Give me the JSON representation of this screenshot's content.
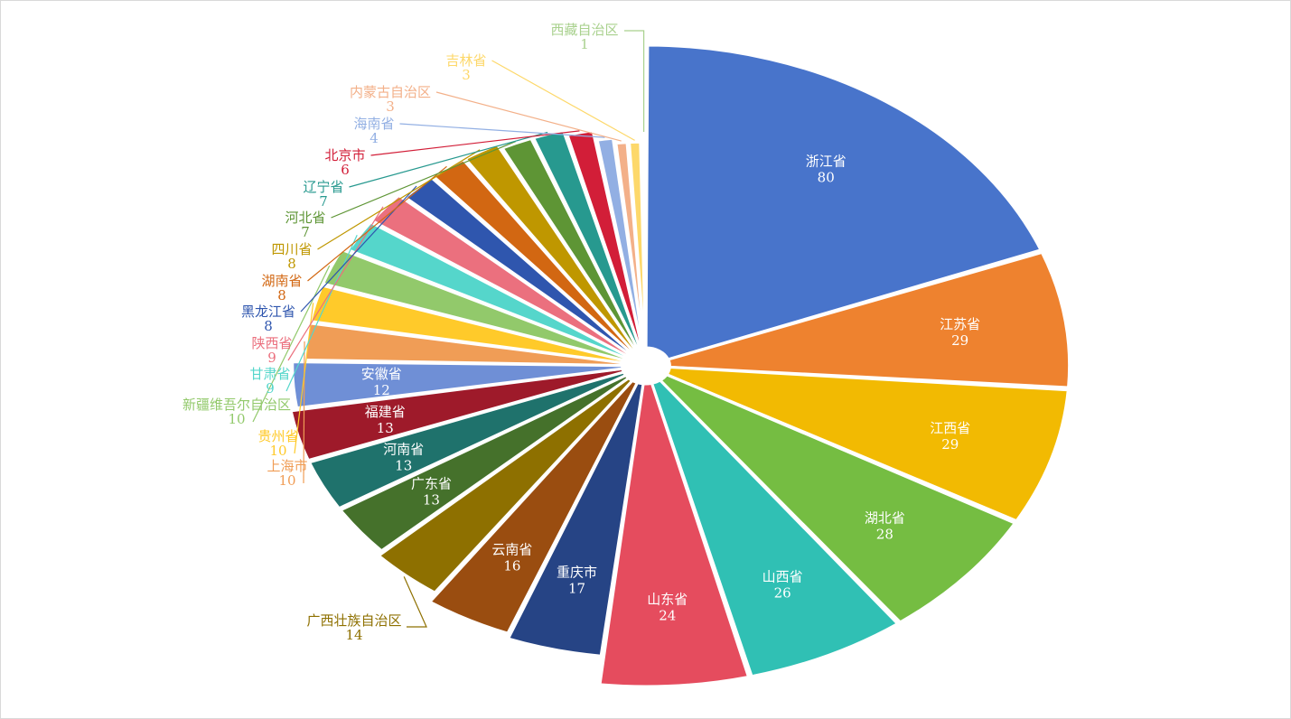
{
  "chart_data": {
    "type": "pie",
    "title": "",
    "legend": "none",
    "slices": [
      {
        "label": "浙江省",
        "value": 80,
        "color": "#4874CB"
      },
      {
        "label": "江苏省",
        "value": 29,
        "color": "#EE822F"
      },
      {
        "label": "江西省",
        "value": 29,
        "color": "#F2BA02"
      },
      {
        "label": "湖北省",
        "value": 28,
        "color": "#75BD42"
      },
      {
        "label": "山西省",
        "value": 26,
        "color": "#30C0B4"
      },
      {
        "label": "山东省",
        "value": 24,
        "color": "#E54C5E"
      },
      {
        "label": "重庆市",
        "value": 17,
        "color": "#264485"
      },
      {
        "label": "云南省",
        "value": 16,
        "color": "#9A4D10"
      },
      {
        "label": "广西壮族自治区",
        "value": 14,
        "color": "#8E7000"
      },
      {
        "label": "广东省",
        "value": 13,
        "color": "#45712B"
      },
      {
        "label": "河南省",
        "value": 13,
        "color": "#1F726C"
      },
      {
        "label": "福建省",
        "value": 13,
        "color": "#9E1A2A"
      },
      {
        "label": "安徽省",
        "value": 12,
        "color": "#6F8FD6"
      },
      {
        "label": "上海市",
        "value": 10,
        "color": "#F09D56"
      },
      {
        "label": "贵州省",
        "value": 10,
        "color": "#FFCA2A"
      },
      {
        "label": "新疆维吾尔自治区",
        "value": 10,
        "color": "#92C96B"
      },
      {
        "label": "甘肃省",
        "value": 9,
        "color": "#55D6CB"
      },
      {
        "label": "陕西省",
        "value": 9,
        "color": "#EB707E"
      },
      {
        "label": "黑龙江省",
        "value": 8,
        "color": "#2F56AE"
      },
      {
        "label": "湖南省",
        "value": 8,
        "color": "#D26712"
      },
      {
        "label": "四川省",
        "value": 8,
        "color": "#BF9700"
      },
      {
        "label": "河北省",
        "value": 7,
        "color": "#5E9535"
      },
      {
        "label": "辽宁省",
        "value": 7,
        "color": "#27998F"
      },
      {
        "label": "北京市",
        "value": 6,
        "color": "#D21E38"
      },
      {
        "label": "海南省",
        "value": 4,
        "color": "#92AFE3"
      },
      {
        "label": "内蒙古自治区",
        "value": 3,
        "color": "#F3B089"
      },
      {
        "label": "吉林省",
        "value": 3,
        "color": "#FDD86A"
      },
      {
        "label": "西藏自治区",
        "value": 1,
        "color": "#A9D18E"
      }
    ]
  }
}
